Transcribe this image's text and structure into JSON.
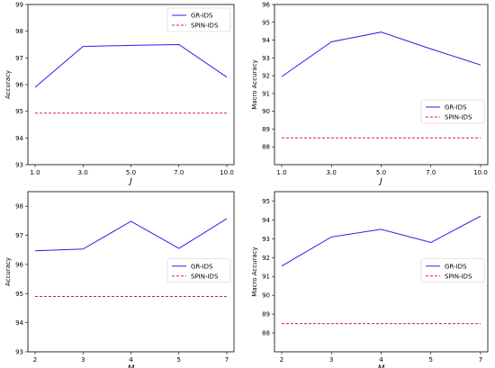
{
  "chart_data": [
    {
      "type": "line",
      "xlabel": "J",
      "ylabel": "Accuracy",
      "categories": [
        "1.0",
        "3.0",
        "5.0",
        "7.0",
        "10.0"
      ],
      "ylim": [
        93,
        99
      ],
      "yticks": [
        "93",
        "94",
        "95",
        "96",
        "97",
        "98",
        "99"
      ],
      "legend_position": "top-right",
      "grid": false,
      "series": [
        {
          "name": "GR-IDS",
          "values": [
            95.9,
            97.43,
            97.47,
            97.5,
            96.28
          ],
          "color": "#2222ee",
          "style": "solid"
        },
        {
          "name": "SPIN-IDS",
          "values": [
            94.93,
            94.93,
            94.93,
            94.93,
            94.93
          ],
          "color": "#e0107f",
          "style": "dashed"
        }
      ]
    },
    {
      "type": "line",
      "xlabel": "J",
      "ylabel": "Macro Accuracy",
      "categories": [
        "1.0",
        "3.0",
        "5.0",
        "7.0",
        "10.0"
      ],
      "ylim": [
        87,
        96
      ],
      "yticks": [
        "88",
        "89",
        "90",
        "91",
        "92",
        "93",
        "94",
        "95",
        "96"
      ],
      "legend_position": "center-right",
      "grid": false,
      "series": [
        {
          "name": "GR-IDS",
          "values": [
            91.95,
            93.9,
            94.45,
            93.5,
            92.6
          ],
          "color": "#2222ee",
          "style": "solid"
        },
        {
          "name": "SPIN-IDS",
          "values": [
            88.5,
            88.5,
            88.5,
            88.5,
            88.5
          ],
          "color": "#e0107f",
          "style": "dashed"
        }
      ]
    },
    {
      "type": "line",
      "xlabel": "M",
      "ylabel": "Accuracy",
      "categories": [
        "2",
        "3",
        "4",
        "5",
        "7"
      ],
      "ylim": [
        93,
        98.5
      ],
      "yticks": [
        "93",
        "94",
        "95",
        "96",
        "97",
        "98"
      ],
      "legend_position": "center-right",
      "grid": false,
      "series": [
        {
          "name": "GR-IDS",
          "values": [
            96.47,
            96.53,
            97.48,
            96.55,
            97.57
          ],
          "color": "#2222ee",
          "style": "solid"
        },
        {
          "name": "SPIN-IDS",
          "values": [
            94.9,
            94.9,
            94.9,
            94.9,
            94.9
          ],
          "color": "#e0107f",
          "style": "dashed"
        }
      ]
    },
    {
      "type": "line",
      "xlabel": "M",
      "ylabel": "Macro Accuracy",
      "categories": [
        "2",
        "3",
        "4",
        "5",
        "7"
      ],
      "ylim": [
        87,
        95.5
      ],
      "yticks": [
        "88",
        "89",
        "90",
        "91",
        "92",
        "93",
        "94",
        "95"
      ],
      "legend_position": "center-right",
      "grid": false,
      "series": [
        {
          "name": "GR-IDS",
          "values": [
            91.55,
            93.1,
            93.5,
            92.8,
            94.2
          ],
          "color": "#2222ee",
          "style": "solid"
        },
        {
          "name": "SPIN-IDS",
          "values": [
            88.5,
            88.5,
            88.5,
            88.5,
            88.5
          ],
          "color": "#e0107f",
          "style": "dashed"
        }
      ]
    }
  ]
}
